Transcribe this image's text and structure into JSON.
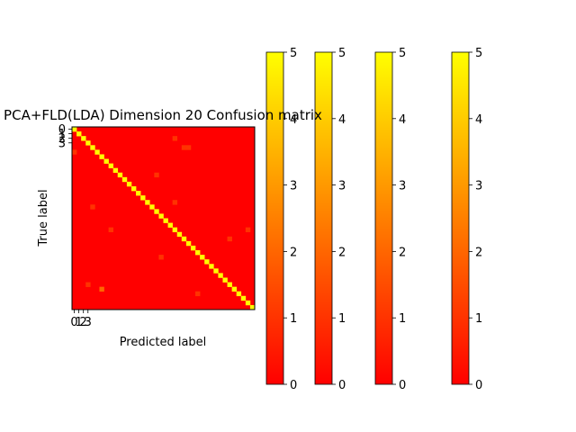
{
  "chart_data": {
    "type": "heatmap",
    "title": "PCA+FLD(LDA) Dimension 20 Confusion matrix",
    "xlabel": "Predicted label",
    "ylabel": "True label",
    "x_tick_labels": [
      "0",
      "1",
      "2",
      "3"
    ],
    "y_tick_labels": [
      "0",
      "1",
      "2",
      "3"
    ],
    "n_classes": 40,
    "colormap": "autumn",
    "color_min": "#ff0000",
    "color_max": "#ffff00",
    "vmin": 0,
    "vmax": 5,
    "diagonal_value": 5,
    "off_diagonal_cells": [
      {
        "true": 2,
        "pred": 22,
        "value": 1
      },
      {
        "true": 4,
        "pred": 24,
        "value": 1
      },
      {
        "true": 4,
        "pred": 25,
        "value": 1
      },
      {
        "true": 5,
        "pred": 0,
        "value": 1
      },
      {
        "true": 10,
        "pred": 18,
        "value": 1
      },
      {
        "true": 16,
        "pred": 22,
        "value": 1
      },
      {
        "true": 17,
        "pred": 4,
        "value": 1
      },
      {
        "true": 22,
        "pred": 38,
        "value": 1
      },
      {
        "true": 22,
        "pred": 8,
        "value": 1
      },
      {
        "true": 24,
        "pred": 34,
        "value": 1
      },
      {
        "true": 28,
        "pred": 19,
        "value": 1
      },
      {
        "true": 34,
        "pred": 3,
        "value": 1
      },
      {
        "true": 35,
        "pred": 6,
        "value": 2
      },
      {
        "true": 36,
        "pred": 27,
        "value": 1
      }
    ],
    "colorbars": [
      {
        "ticks": [
          "0",
          "1",
          "2",
          "3",
          "4",
          "5"
        ]
      },
      {
        "ticks": [
          "0",
          "1",
          "2",
          "3",
          "4",
          "5"
        ]
      },
      {
        "ticks": [
          "0",
          "1",
          "2",
          "3",
          "4",
          "5"
        ]
      },
      {
        "ticks": [
          "0",
          "1",
          "2",
          "3",
          "4",
          "5"
        ]
      }
    ]
  }
}
